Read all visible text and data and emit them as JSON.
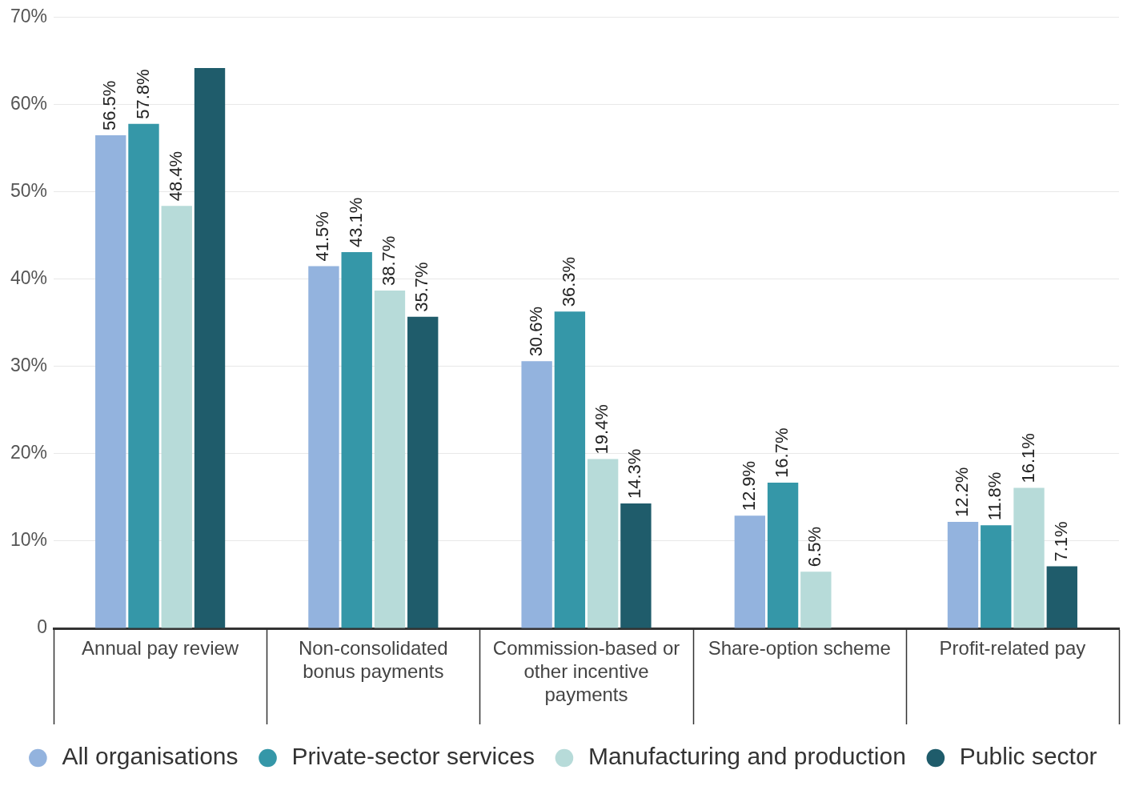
{
  "chart_data": {
    "type": "bar",
    "categories": [
      "Annual pay review",
      "Non-consolidated bonus payments",
      "Commission-based or other incentive payments",
      "Share-option scheme",
      "Profit-related pay"
    ],
    "series": [
      {
        "name": "All organisations",
        "color": "#93b3de",
        "values": [
          56.5,
          41.5,
          30.6,
          12.9,
          12.2
        ],
        "value_labels": [
          "56.5%",
          "41.5%",
          "30.6%",
          "12.9%",
          "12.2%"
        ]
      },
      {
        "name": "Private-sector services",
        "color": "#3597a8",
        "values": [
          57.8,
          43.1,
          36.3,
          16.7,
          11.8
        ],
        "value_labels": [
          "57.8%",
          "43.1%",
          "36.3%",
          "16.7%",
          "11.8%"
        ]
      },
      {
        "name": "Manufacturing and production",
        "color": "#b7dbd9",
        "values": [
          48.4,
          38.7,
          19.4,
          6.5,
          16.1
        ],
        "value_labels": [
          "48.4%",
          "38.7%",
          "19.4%",
          "6.5%",
          "16.1%"
        ]
      },
      {
        "name": "Public sector",
        "color": "#1f5c6b",
        "values": [
          64.2,
          35.7,
          14.3,
          null,
          7.1
        ],
        "value_labels": [
          null,
          "35.7%",
          "14.3%",
          null,
          "7.1%"
        ]
      }
    ],
    "ylim": [
      0,
      70
    ],
    "yticks": [
      {
        "value": 0,
        "label": "0"
      },
      {
        "value": 10,
        "label": "10%"
      },
      {
        "value": 20,
        "label": "20%"
      },
      {
        "value": 30,
        "label": "30%"
      },
      {
        "value": 40,
        "label": "40%"
      },
      {
        "value": 50,
        "label": "50%"
      },
      {
        "value": 60,
        "label": "60%"
      },
      {
        "value": 70,
        "label": "70%"
      }
    ],
    "grid": "y",
    "legend": "bottom"
  }
}
